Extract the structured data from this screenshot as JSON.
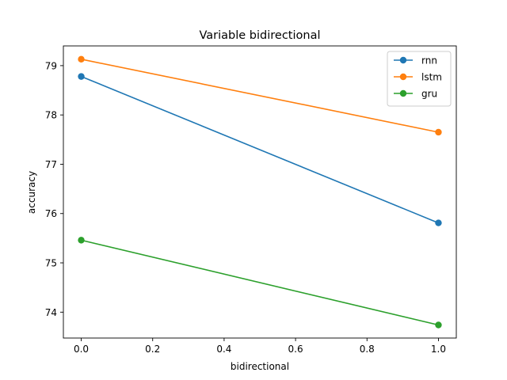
{
  "chart_data": {
    "type": "line",
    "title": "Variable bidirectional",
    "xlabel": "bidirectional",
    "ylabel": "accuracy",
    "xlim": [
      -0.05,
      1.05
    ],
    "ylim": [
      73.475,
      79.4
    ],
    "xticks": [
      0.0,
      0.2,
      0.4,
      0.6,
      0.8,
      1.0
    ],
    "xtick_labels": [
      "0.0",
      "0.2",
      "0.4",
      "0.6",
      "0.8",
      "1.0"
    ],
    "yticks": [
      74,
      75,
      76,
      77,
      78,
      79
    ],
    "ytick_labels": [
      "74",
      "75",
      "76",
      "77",
      "78",
      "79"
    ],
    "grid": false,
    "legend_position": "upper right",
    "x": [
      0.0,
      1.0
    ],
    "series": [
      {
        "name": "rnn",
        "color": "#1f77b4",
        "values": [
          78.78,
          75.81
        ]
      },
      {
        "name": "lstm",
        "color": "#ff7f0e",
        "values": [
          79.13,
          77.65
        ]
      },
      {
        "name": "gru",
        "color": "#2ca02c",
        "values": [
          75.46,
          73.74
        ]
      }
    ]
  }
}
